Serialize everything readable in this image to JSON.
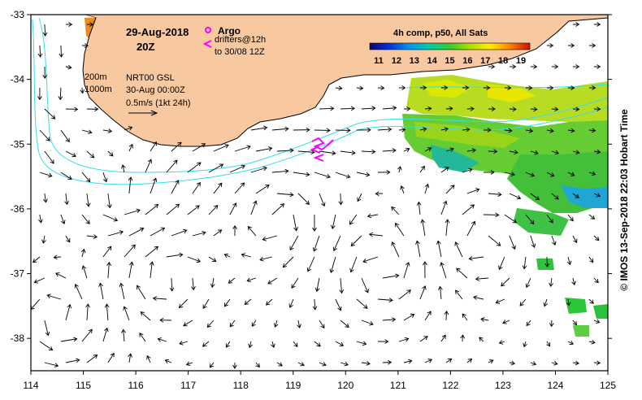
{
  "map": {
    "date": "29-Aug-2018",
    "time": "20Z",
    "argo_label": "Argo",
    "drifters_label": "drifters@12h",
    "drifters_range": "to 30/08 12Z",
    "contour_200": "200m",
    "contour_1000": "1000m",
    "product": "NRT00 GSL",
    "valid_time": "30-Aug 00:00Z",
    "vector_scale": "0.5m/s (1kt 24h)",
    "colorbar_title": "4h comp, p50, All Sats",
    "colorbar_ticks": [
      "11",
      "12",
      "13",
      "14",
      "15",
      "16",
      "17",
      "18",
      "19"
    ],
    "colorbar_range": [
      10.5,
      19.5
    ],
    "credit": "© IMOS 13-Sep-2018 22:03 Hobart Time",
    "x_ticks": [
      "114",
      "115",
      "116",
      "117",
      "118",
      "119",
      "120",
      "121",
      "122",
      "123",
      "124",
      "125"
    ],
    "y_ticks": [
      "-33",
      "-34",
      "-35",
      "-36",
      "-37",
      "-38"
    ],
    "lon_range": [
      114,
      125
    ],
    "lat_range": [
      -38.5,
      -33
    ],
    "colors": {
      "land": "#f8c9a0",
      "isobath": "#33e0f0",
      "drifter": "#ff00ff",
      "frame": "#000000"
    }
  }
}
